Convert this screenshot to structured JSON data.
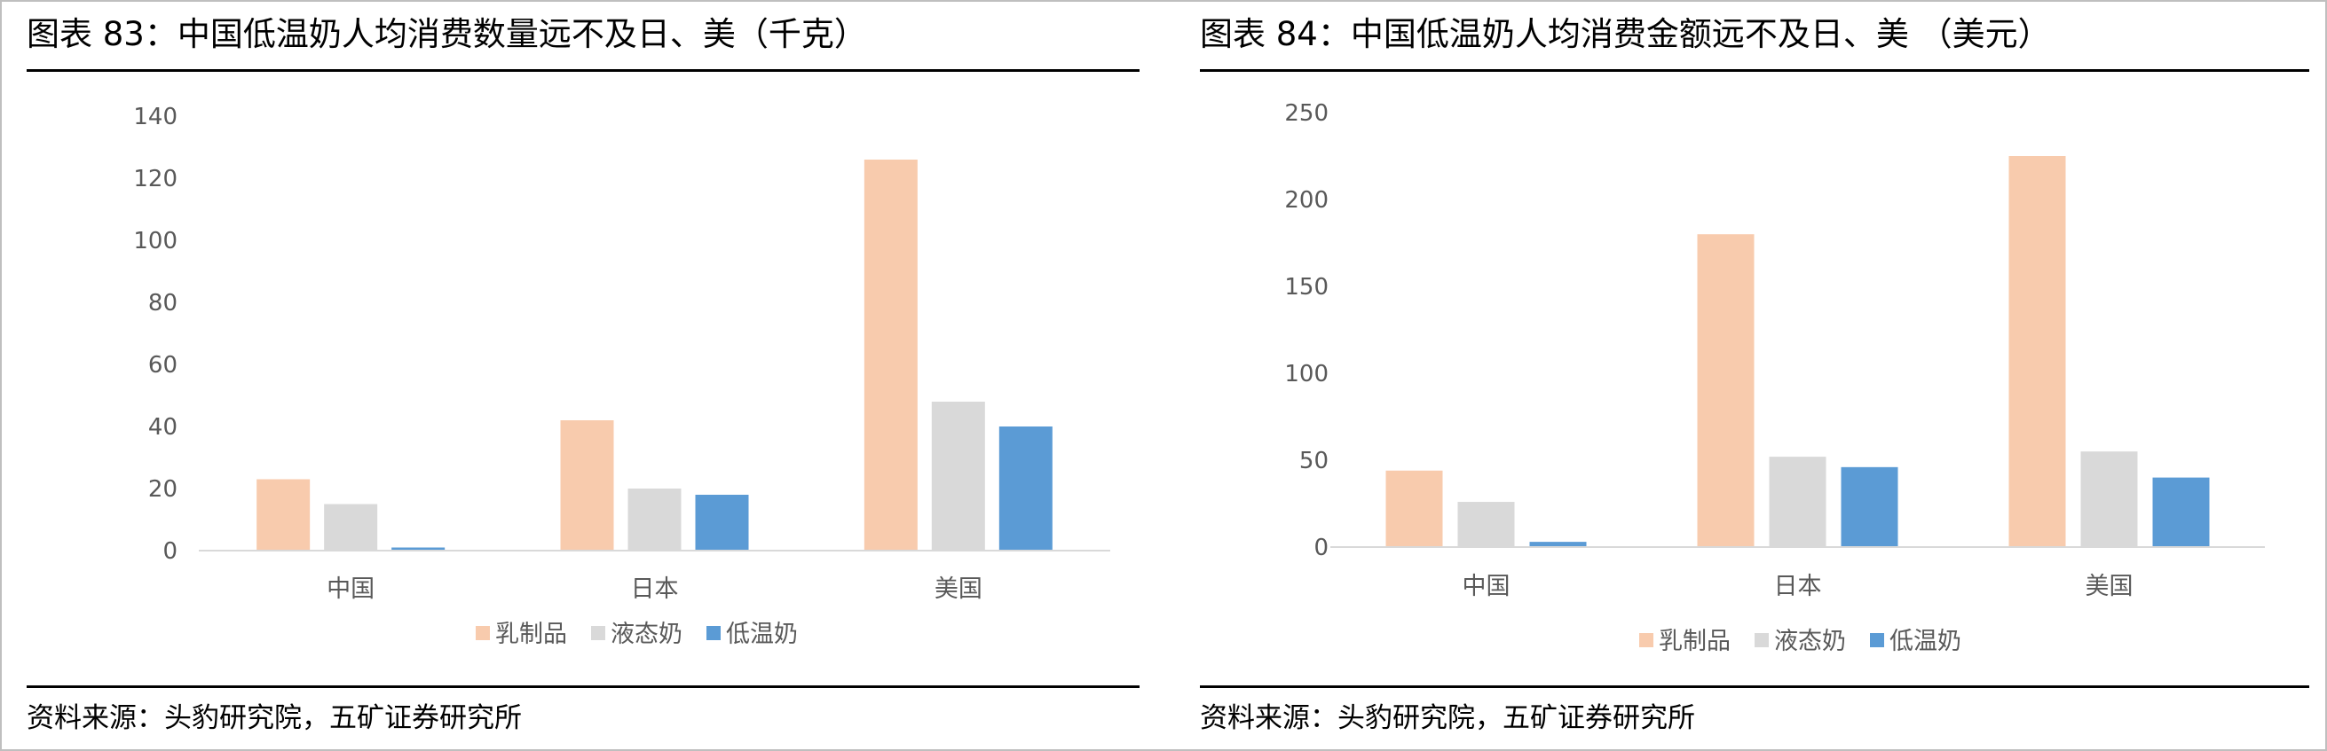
{
  "charts": [
    {
      "title": "图表 83：中国低温奶人均消费数量远不及日、美（千克）",
      "source": "资料来源：头豹研究院，五矿证券研究所"
    },
    {
      "title": "图表 84：中国低温奶人均消费金额远不及日、美 （美元）",
      "source": "资料来源：头豹研究院，五矿证券研究所"
    }
  ],
  "chart_data": [
    {
      "type": "bar",
      "categories": [
        "中国",
        "日本",
        "美国"
      ],
      "series": [
        {
          "name": "乳制品",
          "values": [
            23,
            42,
            126
          ],
          "color": "#f8cbad"
        },
        {
          "name": "液态奶",
          "values": [
            15,
            20,
            48
          ],
          "color": "#d9d9d9"
        },
        {
          "name": "低温奶",
          "values": [
            1,
            18,
            40
          ],
          "color": "#5b9bd5"
        }
      ],
      "ylim": [
        0,
        140
      ],
      "yticks": [
        0,
        20,
        40,
        60,
        80,
        100,
        120,
        140
      ],
      "grid": false,
      "legend": "bottom"
    },
    {
      "type": "bar",
      "categories": [
        "中国",
        "日本",
        "美国"
      ],
      "series": [
        {
          "name": "乳制品",
          "values": [
            44,
            180,
            225
          ],
          "color": "#f8cbad"
        },
        {
          "name": "液态奶",
          "values": [
            26,
            52,
            55
          ],
          "color": "#d9d9d9"
        },
        {
          "name": "低温奶",
          "values": [
            3,
            46,
            40
          ],
          "color": "#5b9bd5"
        }
      ],
      "ylim": [
        0,
        250
      ],
      "yticks": [
        0,
        50,
        100,
        150,
        200,
        250
      ],
      "grid": false,
      "legend": "bottom"
    }
  ]
}
